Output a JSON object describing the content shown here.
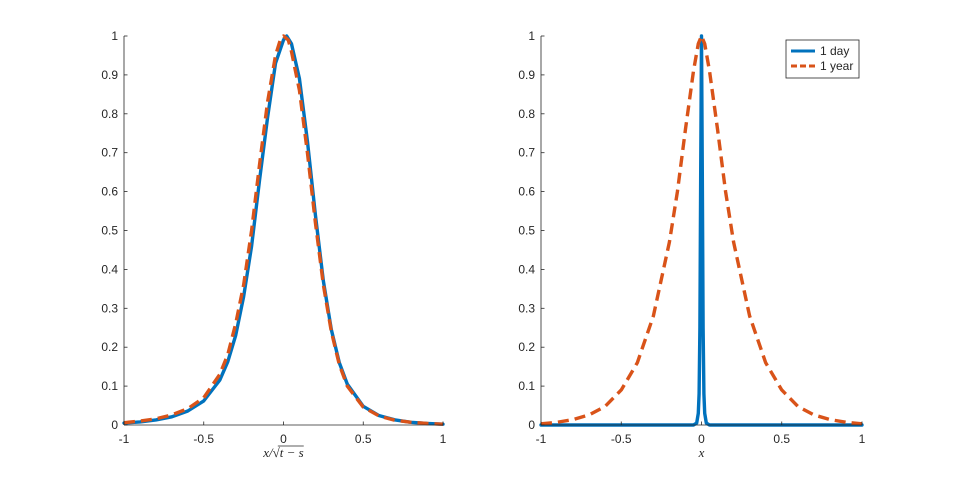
{
  "chart_data": [
    {
      "type": "line",
      "title": "",
      "xlabel": "x/√t − s",
      "ylabel": "",
      "xlim": [
        -1,
        1
      ],
      "ylim": [
        0,
        1
      ],
      "xticks": [
        "-1",
        "-0.5",
        "0",
        "0.5",
        "1"
      ],
      "yticks": [
        "0",
        "0.1",
        "0.2",
        "0.3",
        "0.4",
        "0.5",
        "0.6",
        "0.7",
        "0.8",
        "0.9",
        "1"
      ],
      "grid": false,
      "legend": null,
      "series": [
        {
          "color": "#0072BD",
          "style": "solid",
          "x": [
            -1,
            -0.9,
            -0.8,
            -0.7,
            -0.6,
            -0.5,
            -0.4,
            -0.35,
            -0.3,
            -0.25,
            -0.2,
            -0.15,
            -0.1,
            -0.05,
            0,
            0.02,
            0.05,
            0.1,
            0.15,
            0.2,
            0.25,
            0.3,
            0.35,
            0.4,
            0.5,
            0.6,
            0.7,
            0.8,
            0.9,
            1
          ],
          "y": [
            0.005,
            0.008,
            0.013,
            0.021,
            0.036,
            0.062,
            0.115,
            0.162,
            0.23,
            0.33,
            0.46,
            0.63,
            0.79,
            0.93,
            0.99,
            1.0,
            0.98,
            0.89,
            0.73,
            0.54,
            0.37,
            0.245,
            0.16,
            0.105,
            0.048,
            0.024,
            0.013,
            0.007,
            0.004,
            0.002
          ]
        },
        {
          "color": "#D95319",
          "style": "dashed",
          "x": [
            -1,
            -0.9,
            -0.8,
            -0.7,
            -0.6,
            -0.5,
            -0.4,
            -0.35,
            -0.3,
            -0.25,
            -0.2,
            -0.15,
            -0.1,
            -0.05,
            -0.02,
            0,
            0.03,
            0.05,
            0.1,
            0.15,
            0.2,
            0.25,
            0.3,
            0.35,
            0.4,
            0.5,
            0.6,
            0.7,
            0.8,
            0.9,
            1
          ],
          "y": [
            0.006,
            0.01,
            0.016,
            0.026,
            0.042,
            0.07,
            0.13,
            0.18,
            0.26,
            0.36,
            0.5,
            0.67,
            0.83,
            0.95,
            0.99,
            1.0,
            0.99,
            0.96,
            0.86,
            0.7,
            0.52,
            0.36,
            0.24,
            0.155,
            0.1,
            0.046,
            0.023,
            0.012,
            0.007,
            0.004,
            0.002
          ]
        }
      ]
    },
    {
      "type": "line",
      "title": "",
      "xlabel": "x",
      "ylabel": "",
      "xlim": [
        -1,
        1
      ],
      "ylim": [
        0,
        1
      ],
      "xticks": [
        "-1",
        "-0.5",
        "0",
        "0.5",
        "1"
      ],
      "yticks": [
        "0",
        "0.1",
        "0.2",
        "0.3",
        "0.4",
        "0.5",
        "0.6",
        "0.7",
        "0.8",
        "0.9",
        "1"
      ],
      "grid": false,
      "legend": "top-right",
      "series": [
        {
          "name": "1 day",
          "color": "#0072BD",
          "style": "solid",
          "x": [
            -1,
            -0.2,
            -0.05,
            -0.03,
            -0.02,
            -0.015,
            -0.01,
            -0.005,
            0,
            0.005,
            0.01,
            0.015,
            0.02,
            0.03,
            0.05,
            0.2,
            1
          ],
          "y": [
            0,
            0,
            0.0,
            0.005,
            0.03,
            0.08,
            0.25,
            0.65,
            1.0,
            0.65,
            0.25,
            0.08,
            0.03,
            0.005,
            0.0,
            0,
            0
          ]
        },
        {
          "name": "1 year",
          "color": "#D95319",
          "style": "dashed",
          "x": [
            -1,
            -0.9,
            -0.8,
            -0.7,
            -0.6,
            -0.5,
            -0.4,
            -0.3,
            -0.2,
            -0.15,
            -0.1,
            -0.05,
            -0.02,
            0,
            0.02,
            0.05,
            0.1,
            0.15,
            0.2,
            0.3,
            0.4,
            0.5,
            0.6,
            0.7,
            0.8,
            0.9,
            1
          ],
          "y": [
            0.003,
            0.007,
            0.014,
            0.026,
            0.048,
            0.09,
            0.16,
            0.28,
            0.47,
            0.6,
            0.76,
            0.91,
            0.98,
            1.0,
            0.98,
            0.91,
            0.76,
            0.6,
            0.47,
            0.28,
            0.16,
            0.09,
            0.048,
            0.026,
            0.014,
            0.007,
            0.003
          ]
        }
      ]
    }
  ]
}
